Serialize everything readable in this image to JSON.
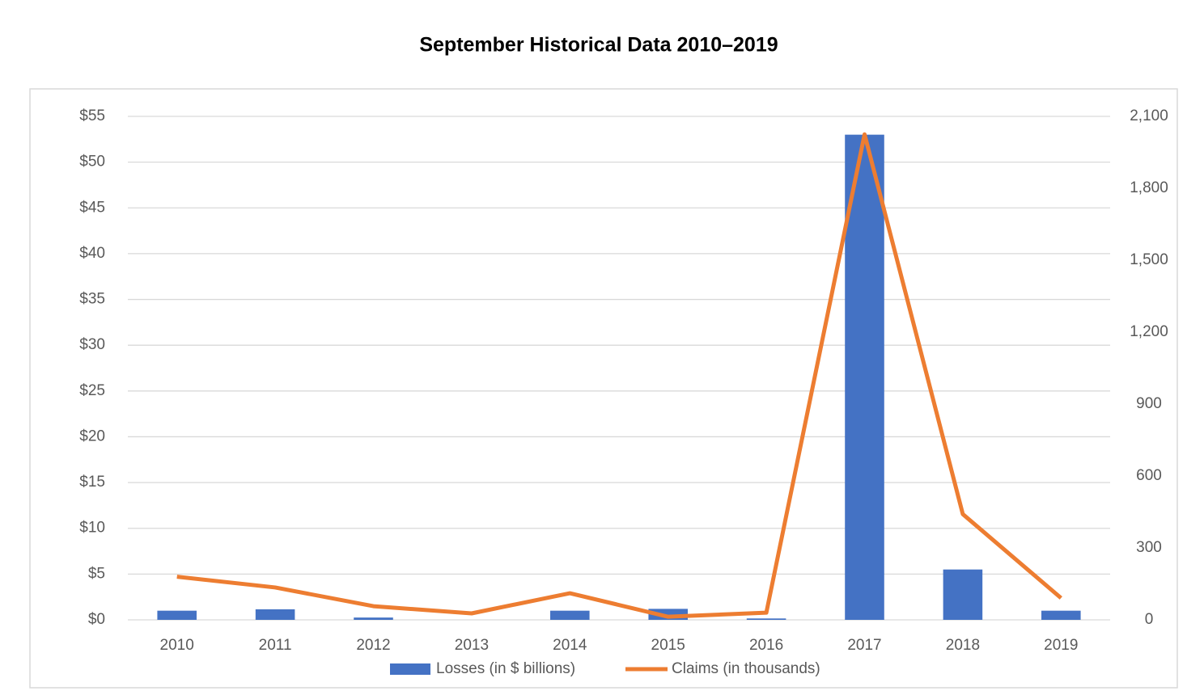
{
  "chart_data": {
    "type": "bar",
    "title": "September Historical Data 2010–2019",
    "categories": [
      "2010",
      "2011",
      "2012",
      "2013",
      "2014",
      "2015",
      "2016",
      "2017",
      "2018",
      "2019"
    ],
    "series": [
      {
        "name": "Losses (in $ billions)",
        "type": "bar",
        "color": "#4472c4",
        "axis": "y",
        "values": [
          1.0,
          1.15,
          0.25,
          0,
          1.0,
          1.2,
          0.15,
          53.0,
          5.5,
          1.0
        ]
      },
      {
        "name": "Claims (in thousands)",
        "type": "line",
        "color": "#ed7d31",
        "axis": "y2",
        "values": [
          180,
          135,
          57,
          27,
          111,
          13,
          30,
          2025,
          441,
          91
        ]
      }
    ],
    "ylim": [
      0,
      55
    ],
    "yticks": [
      {
        "value": 0,
        "label": "$0"
      },
      {
        "value": 5,
        "label": "$5"
      },
      {
        "value": 10,
        "label": "$10"
      },
      {
        "value": 15,
        "label": "$15"
      },
      {
        "value": 20,
        "label": "$20"
      },
      {
        "value": 25,
        "label": "$25"
      },
      {
        "value": 30,
        "label": "$30"
      },
      {
        "value": 35,
        "label": "$35"
      },
      {
        "value": 40,
        "label": "$40"
      },
      {
        "value": 45,
        "label": "$45"
      },
      {
        "value": 50,
        "label": "$50"
      },
      {
        "value": 55,
        "label": "$55"
      }
    ],
    "y2lim": [
      0,
      2100
    ],
    "y2ticks": [
      0,
      300,
      600,
      900,
      {
        "value": 1200,
        "label": "1,200"
      },
      {
        "value": 1500,
        "label": "1,500"
      },
      {
        "value": 1800,
        "label": "1,800"
      },
      {
        "value": 2100,
        "label": "2,100"
      }
    ],
    "grid": true,
    "legend": "bottom"
  }
}
